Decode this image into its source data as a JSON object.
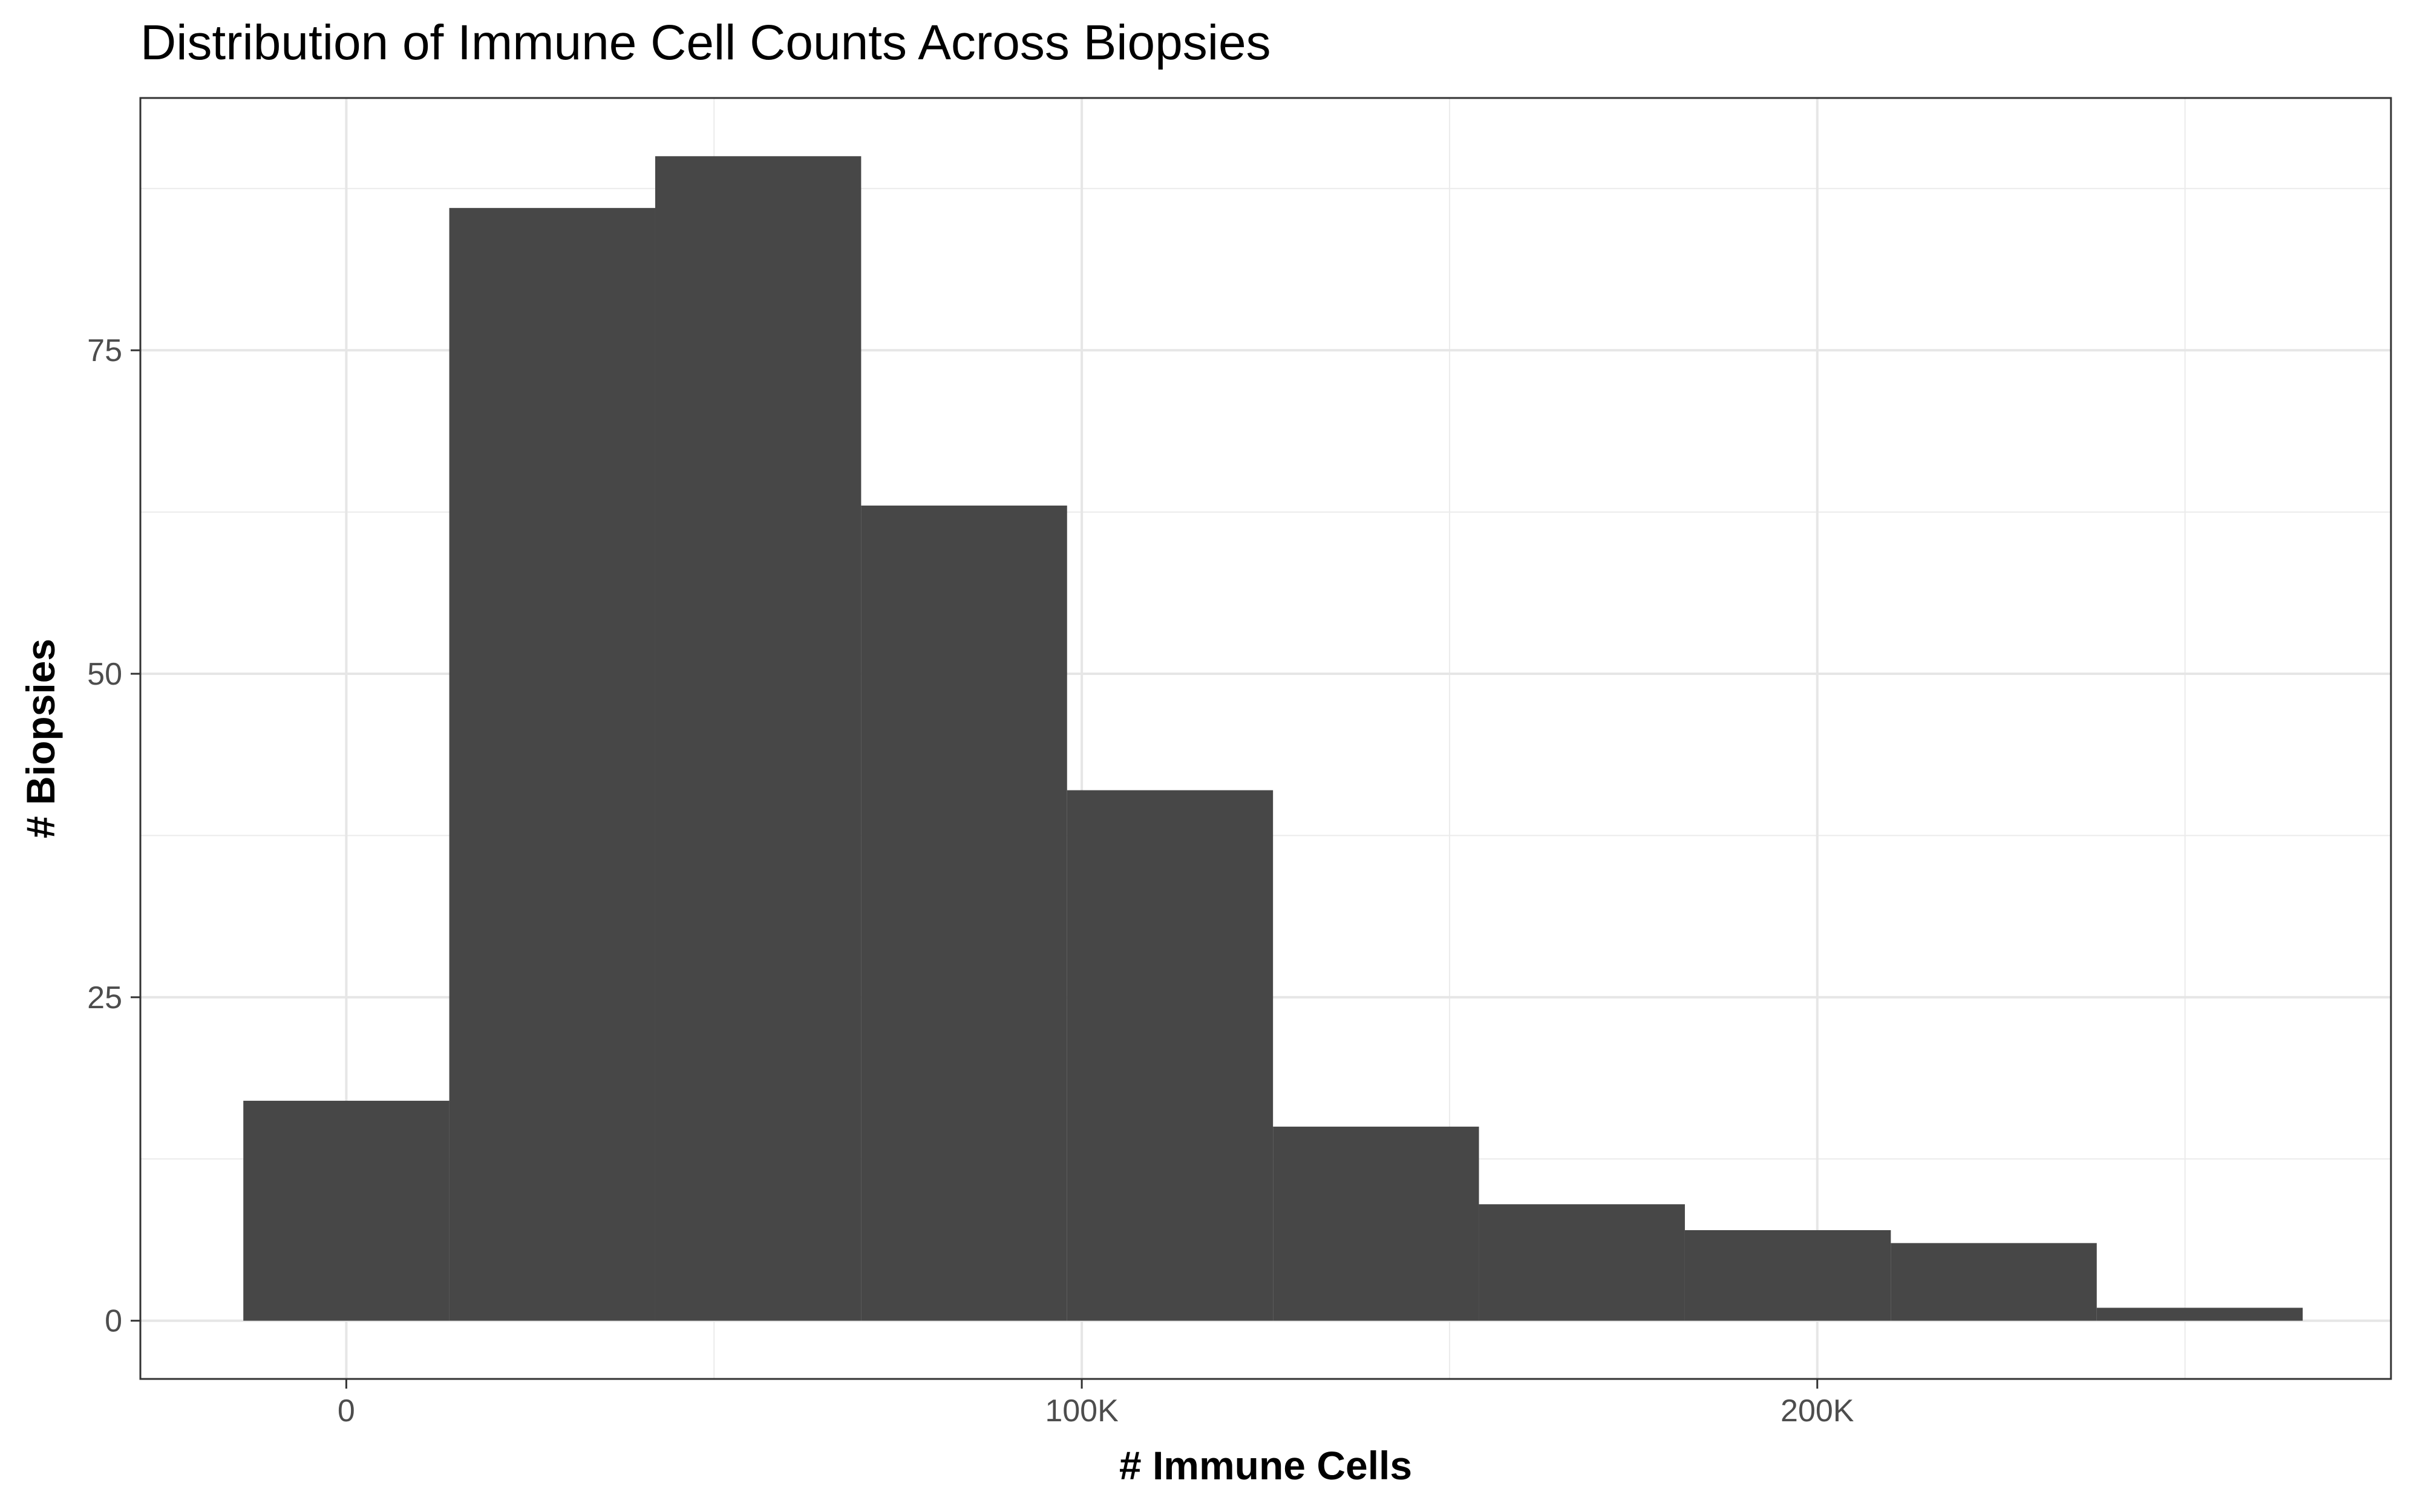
{
  "chart_data": {
    "type": "bar",
    "title": "Distribution of Immune Cell Counts Across Biopsies",
    "xlabel": "# Immune Cells",
    "ylabel": "# Biopsies",
    "x_ticks": [
      {
        "value": 0,
        "label": "0"
      },
      {
        "value": 100000,
        "label": "100K"
      },
      {
        "value": 200000,
        "label": "200K"
      }
    ],
    "y_ticks": [
      {
        "value": 0,
        "label": "0"
      },
      {
        "value": 25,
        "label": "25"
      },
      {
        "value": 50,
        "label": "50"
      },
      {
        "value": 75,
        "label": "75"
      }
    ],
    "xlim": [
      -28000,
      278000
    ],
    "ylim": [
      -4.5,
      94.5
    ],
    "grid": true,
    "bar_color": "#474747",
    "bins": [
      {
        "x0": -14000,
        "x1": 14000,
        "count": 17
      },
      {
        "x0": 14000,
        "x1": 42000,
        "count": 86
      },
      {
        "x0": 42000,
        "x1": 70000,
        "count": 90
      },
      {
        "x0": 70000,
        "x1": 98000,
        "count": 63
      },
      {
        "x0": 98000,
        "x1": 126000,
        "count": 41
      },
      {
        "x0": 126000,
        "x1": 154000,
        "count": 15
      },
      {
        "x0": 154000,
        "x1": 182000,
        "count": 9
      },
      {
        "x0": 182000,
        "x1": 210000,
        "count": 7
      },
      {
        "x0": 210000,
        "x1": 238000,
        "count": 6
      },
      {
        "x0": 238000,
        "x1": 266000,
        "count": 1
      }
    ]
  }
}
